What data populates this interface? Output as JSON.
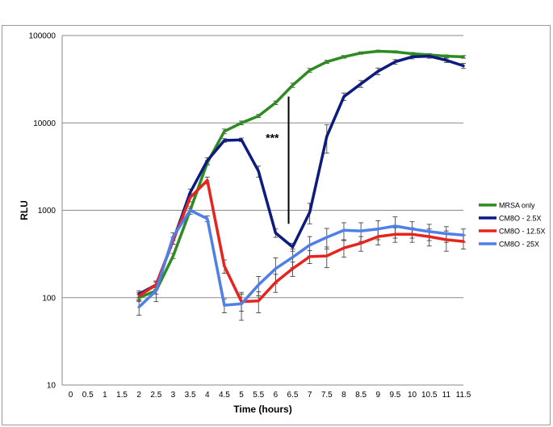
{
  "chart_data": {
    "type": "line",
    "xlabel": "Time (hours)",
    "ylabel": "RLU",
    "yscale": "log",
    "ylim": [
      10,
      100000
    ],
    "xlim": [
      0,
      11.5
    ],
    "x_ticks": [
      "0",
      "0.5",
      "1",
      "1.5",
      "2",
      "2.5",
      "3",
      "3.5",
      "4",
      "4.5",
      "5",
      "5.5",
      "6",
      "6.5",
      "7",
      "7.5",
      "8",
      "8.5",
      "9",
      "9.5",
      "10",
      "10.5",
      "11",
      "11.5"
    ],
    "y_ticks": [
      "10",
      "100",
      "1000",
      "10000",
      "100000"
    ],
    "grid": "horizontal",
    "legend_position": "right",
    "annotation": "***",
    "annotation_x": 6.5,
    "annotation_bar": [
      700,
      20000
    ],
    "x": [
      2,
      2.5,
      3,
      3.5,
      4,
      4.5,
      5,
      5.5,
      6,
      6.5,
      7,
      7.5,
      8,
      8.5,
      9,
      9.5,
      10,
      10.5,
      11,
      11.5
    ],
    "series": [
      {
        "name": "MRSA only",
        "color": "#2e8b22",
        "values": [
          100,
          120,
          300,
          1000,
          3500,
          8000,
          10000,
          12000,
          17000,
          27000,
          40000,
          50000,
          57000,
          63000,
          66000,
          65000,
          62000,
          60000,
          58000,
          57000
        ],
        "errors": [
          10,
          10,
          20,
          50,
          200,
          500,
          500,
          500,
          800,
          1500,
          2000,
          2000,
          2000,
          2000,
          2000,
          2000,
          2000,
          2000,
          2000,
          2000
        ]
      },
      {
        "name": "CM8O - 2.5X",
        "color": "#0d1a80",
        "values": [
          110,
          140,
          450,
          1600,
          3700,
          6300,
          6400,
          2800,
          550,
          380,
          950,
          7000,
          20000,
          28000,
          39000,
          50000,
          57000,
          58000,
          52000,
          45000
        ],
        "errors": [
          10,
          15,
          40,
          150,
          300,
          300,
          300,
          400,
          60,
          40,
          250,
          2500,
          2000,
          2500,
          3500,
          3000,
          3000,
          3000,
          3000,
          3000
        ]
      },
      {
        "name": "CM8O - 12.5X",
        "color": "#e8231e",
        "values": [
          105,
          140,
          450,
          1400,
          2200,
          230,
          90,
          92,
          150,
          215,
          295,
          300,
          370,
          420,
          500,
          530,
          530,
          500,
          460,
          440
        ],
        "errors": [
          10,
          15,
          40,
          150,
          200,
          40,
          20,
          25,
          35,
          40,
          50,
          80,
          80,
          80,
          100,
          100,
          100,
          110,
          120,
          80
        ]
      },
      {
        "name": "CM8O - 25X",
        "color": "#4f7fe8",
        "values": [
          78,
          120,
          500,
          1000,
          800,
          82,
          85,
          140,
          215,
          290,
          400,
          490,
          590,
          580,
          610,
          660,
          610,
          570,
          540,
          520
        ],
        "errors": [
          15,
          30,
          50,
          100,
          60,
          15,
          30,
          35,
          70,
          70,
          100,
          130,
          130,
          140,
          150,
          180,
          130,
          120,
          110,
          90
        ]
      }
    ]
  }
}
